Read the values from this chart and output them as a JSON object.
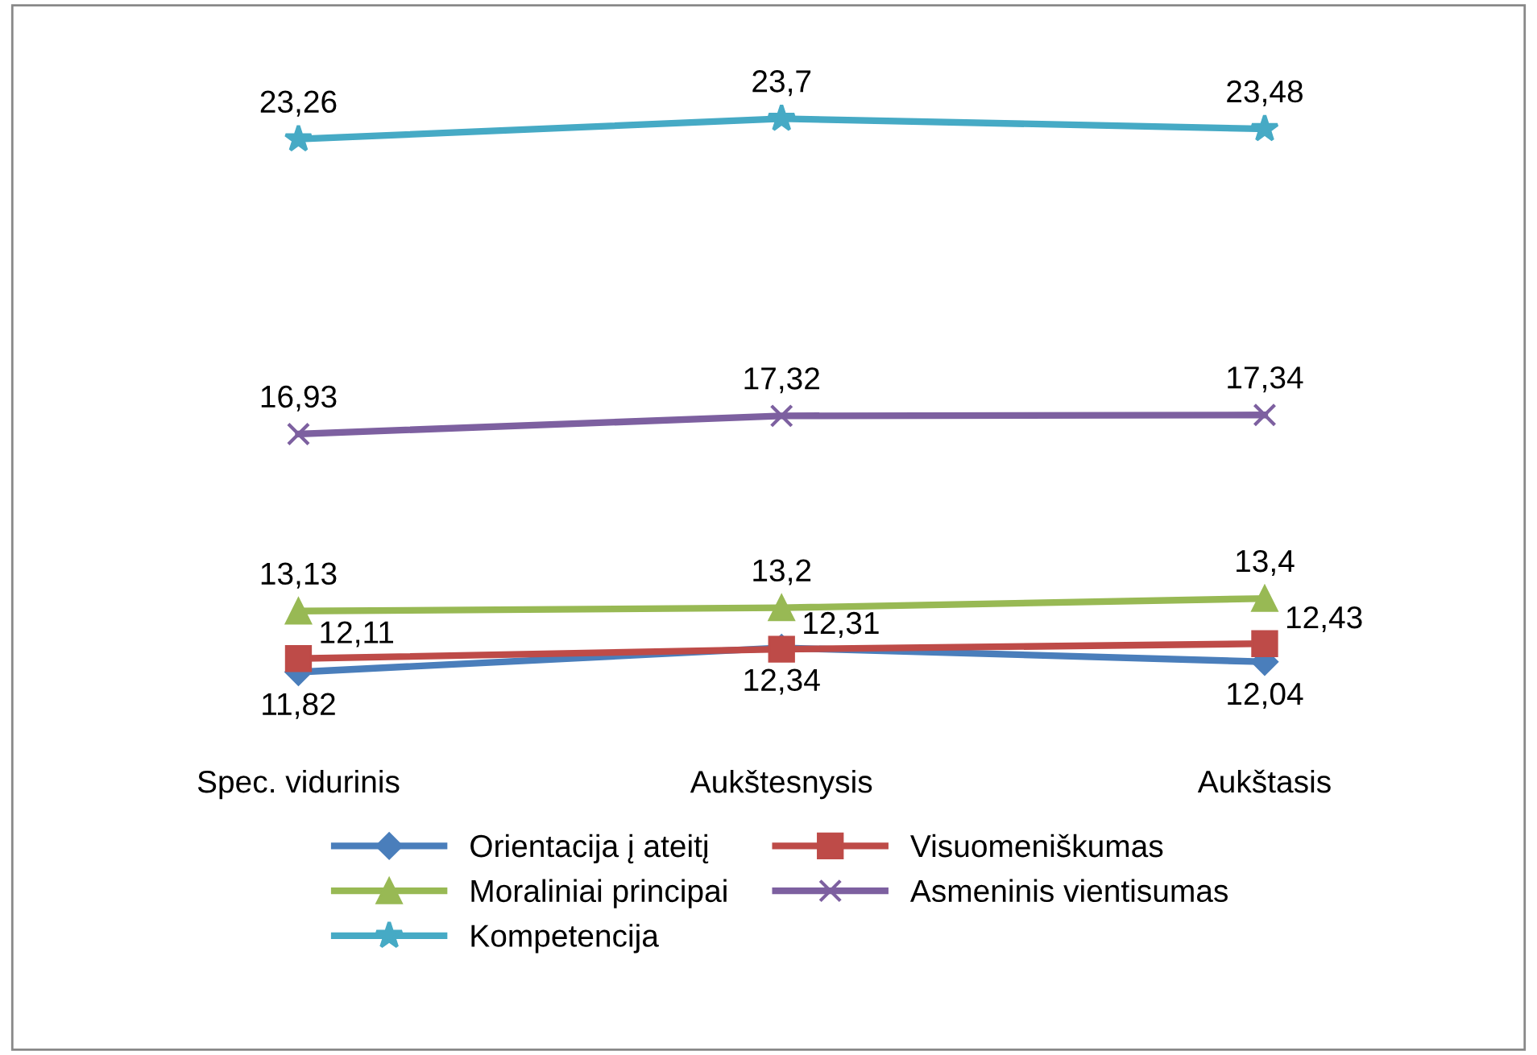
{
  "chart_data": {
    "type": "line",
    "legend": "bottom",
    "grid": false,
    "tick_labels": "x",
    "categories": [
      "Spec. vidurinis",
      "Aukštesnysis",
      "Aukštasis"
    ],
    "series": [
      {
        "name": "Orientacija į ateitį",
        "color": "#4a7ebb",
        "marker": "diamond",
        "values": [
          11.82,
          12.34,
          12.04
        ],
        "value_labels": [
          "11,82",
          "12,34",
          "12,04"
        ]
      },
      {
        "name": "Visuomeniškumas",
        "color": "#be4b48",
        "marker": "square",
        "values": [
          12.11,
          12.31,
          12.43
        ],
        "value_labels": [
          "12,11",
          "12,31",
          "12,43"
        ]
      },
      {
        "name": "Moraliniai principai",
        "color": "#98b954",
        "marker": "triangle",
        "values": [
          13.13,
          13.2,
          13.4
        ],
        "value_labels": [
          "13,13",
          "13,2",
          "13,4"
        ]
      },
      {
        "name": "Asmeninis vientisumas",
        "color": "#7d60a0",
        "marker": "cross",
        "values": [
          16.93,
          17.32,
          17.34
        ],
        "value_labels": [
          "16,93",
          "17,32",
          "17,34"
        ]
      },
      {
        "name": "Kompetencija",
        "color": "#46aac5",
        "marker": "star",
        "values": [
          23.26,
          23.7,
          23.48
        ],
        "value_labels": [
          "23,26",
          "23,7",
          "23,48"
        ]
      }
    ]
  }
}
